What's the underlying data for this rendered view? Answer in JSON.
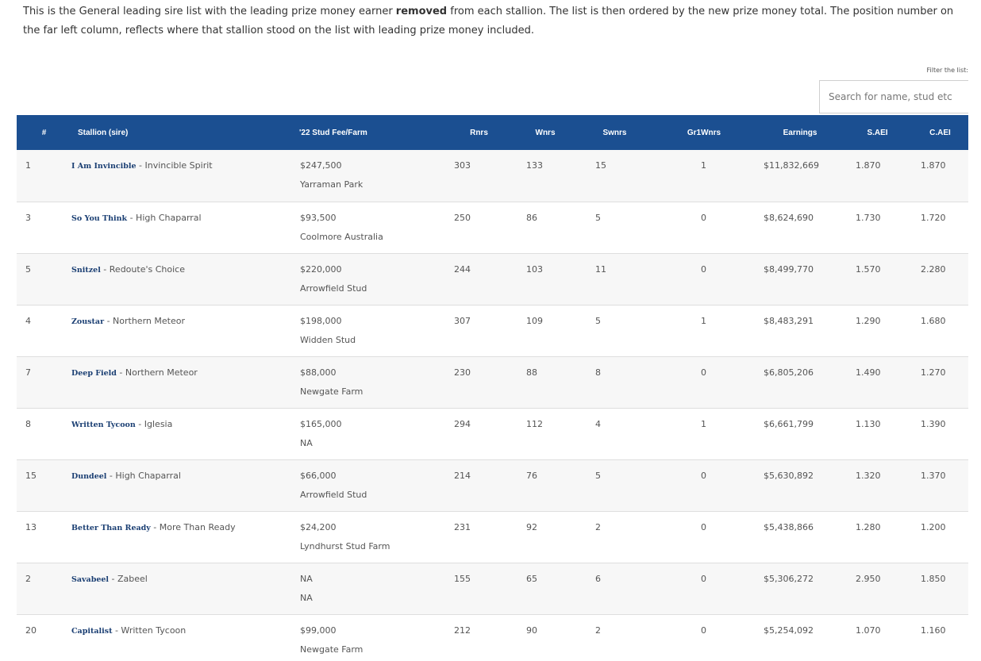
{
  "intro": {
    "part1": "This is the General leading sire list with the leading prize money earner ",
    "bold": "removed",
    "part2": " from each stallion. The list is then ordered by the new prize money total. The position number on the far left column, reflects where that stallion stood on the list with leading prize money included."
  },
  "filter": {
    "label": "Filter the list:",
    "placeholder": "Search for name, stud etc"
  },
  "table": {
    "headers": {
      "pos": "#",
      "stallion": "Stallion (sire)",
      "fee": "'22 Stud Fee/Farm",
      "rnrs": "Rnrs",
      "wnrs": "Wnrs",
      "swnrs": "Swnrs",
      "gr1wnrs": "Gr1Wnrs",
      "earnings": "Earnings",
      "saei": "S.AEI",
      "caei": "C.AEI"
    },
    "rows": [
      {
        "pos": "1",
        "name": "I Am Invincible",
        "sire": " - Invincible Spirit",
        "fee": "$247,500",
        "farm": "Yarraman Park",
        "rnrs": "303",
        "wnrs": "133",
        "swnrs": "15",
        "gr1": "1",
        "earnings": "$11,832,669",
        "saei": "1.870",
        "caei": "1.870"
      },
      {
        "pos": "3",
        "name": "So You Think",
        "sire": " - High Chaparral",
        "fee": "$93,500",
        "farm": "Coolmore Australia",
        "rnrs": "250",
        "wnrs": "86",
        "swnrs": "5",
        "gr1": "0",
        "earnings": "$8,624,690",
        "saei": "1.730",
        "caei": "1.720"
      },
      {
        "pos": "5",
        "name": "Snitzel",
        "sire": " - Redoute's Choice",
        "fee": "$220,000",
        "farm": "Arrowfield Stud",
        "rnrs": "244",
        "wnrs": "103",
        "swnrs": "11",
        "gr1": "0",
        "earnings": "$8,499,770",
        "saei": "1.570",
        "caei": "2.280"
      },
      {
        "pos": "4",
        "name": "Zoustar",
        "sire": " - Northern Meteor",
        "fee": "$198,000",
        "farm": "Widden Stud",
        "rnrs": "307",
        "wnrs": "109",
        "swnrs": "5",
        "gr1": "1",
        "earnings": "$8,483,291",
        "saei": "1.290",
        "caei": "1.680"
      },
      {
        "pos": "7",
        "name": "Deep Field",
        "sire": " - Northern Meteor",
        "fee": "$88,000",
        "farm": "Newgate Farm",
        "rnrs": "230",
        "wnrs": "88",
        "swnrs": "8",
        "gr1": "0",
        "earnings": "$6,805,206",
        "saei": "1.490",
        "caei": "1.270"
      },
      {
        "pos": "8",
        "name": "Written Tycoon",
        "sire": " - Iglesia",
        "fee": "$165,000",
        "farm": "NA",
        "rnrs": "294",
        "wnrs": "112",
        "swnrs": "4",
        "gr1": "1",
        "earnings": "$6,661,799",
        "saei": "1.130",
        "caei": "1.390"
      },
      {
        "pos": "15",
        "name": "Dundeel",
        "sire": " - High Chaparral",
        "fee": "$66,000",
        "farm": "Arrowfield Stud",
        "rnrs": "214",
        "wnrs": "76",
        "swnrs": "5",
        "gr1": "0",
        "earnings": "$5,630,892",
        "saei": "1.320",
        "caei": "1.370"
      },
      {
        "pos": "13",
        "name": "Better Than Ready",
        "sire": " - More Than Ready",
        "fee": "$24,200",
        "farm": "Lyndhurst Stud Farm",
        "rnrs": "231",
        "wnrs": "92",
        "swnrs": "2",
        "gr1": "0",
        "earnings": "$5,438,866",
        "saei": "1.280",
        "caei": "1.200"
      },
      {
        "pos": "2",
        "name": "Savabeel",
        "sire": " - Zabeel",
        "fee": "NA",
        "farm": "NA",
        "rnrs": "155",
        "wnrs": "65",
        "swnrs": "6",
        "gr1": "0",
        "earnings": "$5,306,272",
        "saei": "2.950",
        "caei": "1.850"
      },
      {
        "pos": "20",
        "name": "Capitalist",
        "sire": " - Written Tycoon",
        "fee": "$99,000",
        "farm": "Newgate Farm",
        "rnrs": "212",
        "wnrs": "90",
        "swnrs": "2",
        "gr1": "0",
        "earnings": "$5,254,092",
        "saei": "1.070",
        "caei": "1.160"
      }
    ]
  },
  "colors": {
    "header_bg": "#1b4f91",
    "sire_link": "#1b3f73",
    "row_alt": "#f7f7f7"
  }
}
